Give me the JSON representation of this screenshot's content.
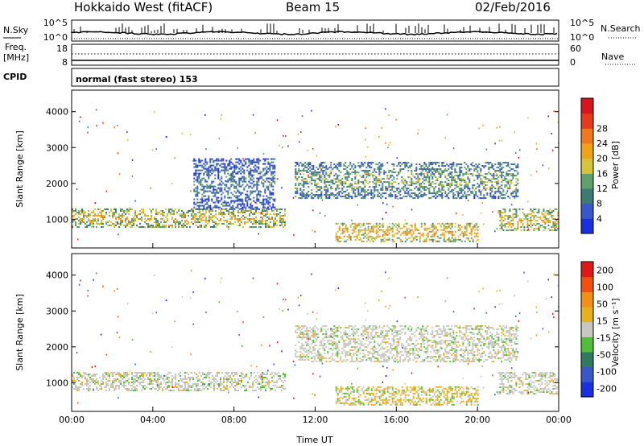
{
  "header": {
    "station": "Hokkaido West (fitACF)",
    "beam": "Beam 15",
    "date": "02/Feb/2016"
  },
  "strip_noise": {
    "left_label": "N.Sky",
    "right_label": "N.Search",
    "left_ticks": [
      "10^5",
      "10^0"
    ],
    "right_ticks": [
      "10^5",
      "10^0"
    ]
  },
  "strip_freq": {
    "left_label_1": "Freq.",
    "left_label_2": "[MHz]",
    "right_label": "Nave",
    "left_ticks": [
      "18",
      "8"
    ],
    "right_ticks": [
      "60",
      "0"
    ]
  },
  "strip_cpid": {
    "label": "CPID",
    "text": "normal (fast stereo) 153"
  },
  "colors": {
    "background": "#ffffff",
    "frame": "#000000"
  },
  "chart_data": [
    {
      "type": "heatmap",
      "panel": "power",
      "ylabel": "Slant Range [km]",
      "xlabel": "",
      "ylim": [
        200,
        4600
      ],
      "x_ticks": [
        "00:00",
        "04:00",
        "08:00",
        "12:00",
        "16:00",
        "20:00",
        "00:00"
      ],
      "y_ticks": [
        1000,
        2000,
        3000,
        4000
      ],
      "colorbar": {
        "label": "Power [dB]",
        "tick_labels": [
          "4",
          "8",
          "12",
          "16",
          "20",
          "24",
          "28"
        ],
        "colors": [
          "#1a2fe0",
          "#3a56c8",
          "#3d7a76",
          "#5fa06c",
          "#d7c43a",
          "#f0a21c",
          "#f0781e",
          "#e53a1e",
          "#d8141e"
        ]
      },
      "structures": [
        {
          "name": "lower band",
          "start_h": 0,
          "end_h": 10.5,
          "range_km": [
            800,
            1300
          ],
          "value": 18
        },
        {
          "name": "morning rising",
          "start_h": 6,
          "end_h": 10,
          "range_km": [
            1300,
            2700
          ],
          "value": 8
        },
        {
          "name": "afternoon band",
          "start_h": 11,
          "end_h": 22,
          "range_km": [
            1600,
            2600
          ],
          "value": 12
        },
        {
          "name": "afternoon lower",
          "start_h": 13,
          "end_h": 20,
          "range_km": [
            400,
            900
          ],
          "value": 20
        },
        {
          "name": "evening band",
          "start_h": 21,
          "end_h": 24,
          "range_km": [
            700,
            1300
          ],
          "value": 18
        }
      ]
    },
    {
      "type": "heatmap",
      "panel": "velocity",
      "ylabel": "Slant Range [km]",
      "xlabel": "Time UT",
      "ylim": [
        200,
        4600
      ],
      "x_ticks": [
        "00:00",
        "04:00",
        "08:00",
        "12:00",
        "16:00",
        "20:00",
        "00:00"
      ],
      "y_ticks": [
        1000,
        2000,
        3000,
        4000
      ],
      "colorbar": {
        "label": "Velocity [m s⁻¹]",
        "tick_labels": [
          "200",
          "100",
          "50",
          "15",
          "-15",
          "-50",
          "-100",
          "-200"
        ],
        "colors": [
          "#1a2fe0",
          "#3a56c8",
          "#2f7a60",
          "#4fbf38",
          "#c8c8c0",
          "#e8b020",
          "#f09018",
          "#f05010",
          "#e01818"
        ]
      },
      "structures": [
        {
          "name": "lower band",
          "start_h": 0,
          "end_h": 10.5,
          "range_km": [
            800,
            1300
          ],
          "value": 0
        },
        {
          "name": "afternoon band",
          "start_h": 11,
          "end_h": 22,
          "range_km": [
            1600,
            2600
          ],
          "value": 0
        },
        {
          "name": "afternoon lower",
          "start_h": 13,
          "end_h": 20,
          "range_km": [
            400,
            900
          ],
          "value": -50
        },
        {
          "name": "evening band",
          "start_h": 21,
          "end_h": 24,
          "range_km": [
            700,
            1300
          ],
          "value": 0
        }
      ]
    }
  ]
}
